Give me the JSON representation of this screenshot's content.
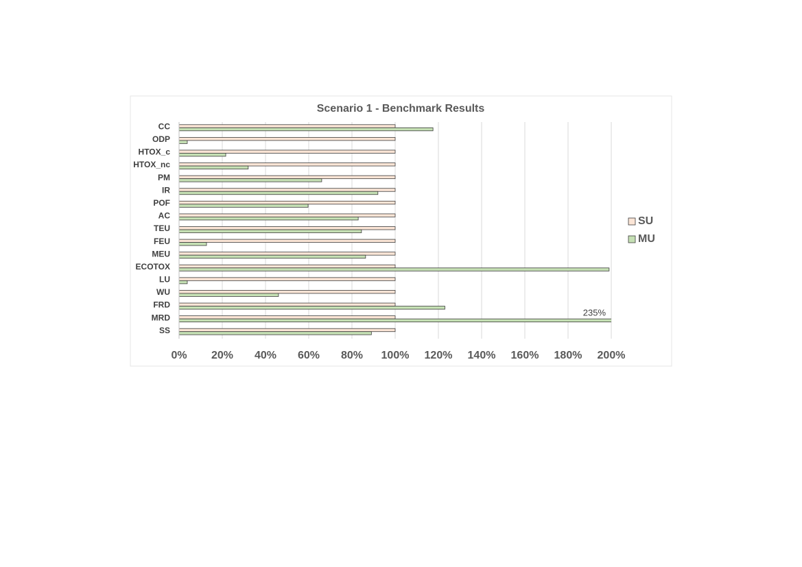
{
  "chart_data": {
    "type": "barh",
    "title": "Scenario 1 - Benchmark Results",
    "categories": [
      "CC",
      "ODP",
      "HTOX_c",
      "HTOX_nc",
      "PM",
      "IR",
      "POF",
      "AC",
      "TEU",
      "FEU",
      "MEU",
      "ECOTOX",
      "LU",
      "WU",
      "FRD",
      "MRD",
      "SS"
    ],
    "series": [
      {
        "name": "SU",
        "color": "#fbe5d6",
        "values": [
          100,
          100,
          100,
          100,
          100,
          100,
          100,
          100,
          100,
          100,
          100,
          100,
          100,
          100,
          100,
          100,
          100
        ]
      },
      {
        "name": "MU",
        "color": "#c5e0b4",
        "values": [
          117.5,
          3.8,
          21.6,
          32,
          66,
          92,
          59.7,
          82.9,
          84.4,
          12.7,
          86.3,
          199,
          3.8,
          46,
          123,
          235,
          89
        ],
        "value_labels": [
          null,
          null,
          null,
          null,
          null,
          null,
          null,
          null,
          null,
          null,
          null,
          null,
          null,
          null,
          null,
          "235%",
          null
        ]
      }
    ],
    "xlim": [
      0,
      200
    ],
    "xticks": [
      {
        "value": 0,
        "label": "0%"
      },
      {
        "value": 20,
        "label": "20%"
      },
      {
        "value": 40,
        "label": "40%"
      },
      {
        "value": 60,
        "label": "60%"
      },
      {
        "value": 80,
        "label": "80%"
      },
      {
        "value": 100,
        "label": "100%"
      },
      {
        "value": 120,
        "label": "120%"
      },
      {
        "value": 140,
        "label": "140%"
      },
      {
        "value": 160,
        "label": "160%"
      },
      {
        "value": 180,
        "label": "180%"
      },
      {
        "value": 200,
        "label": "200%"
      }
    ],
    "grid": true,
    "legend": "right"
  }
}
